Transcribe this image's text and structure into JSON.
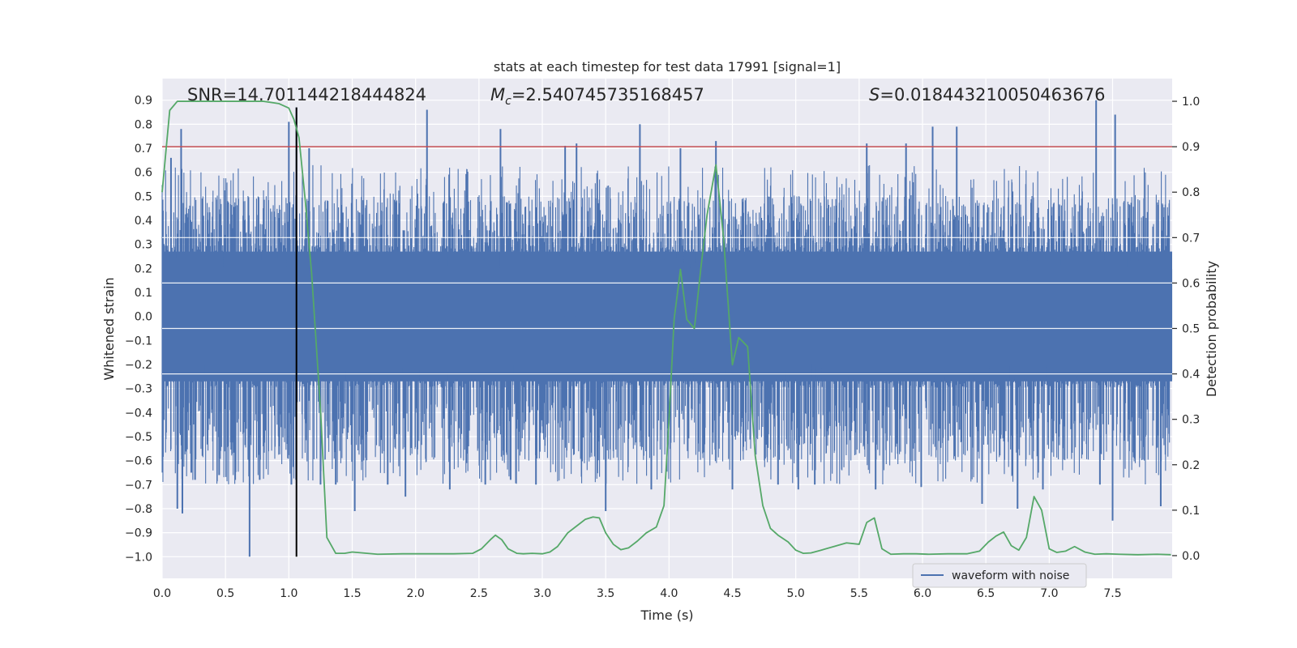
{
  "chart_data": {
    "type": "line",
    "title": "stats at each timestep for test data 17991 [signal=1]",
    "xlabel": "Time (s)",
    "ylabel_left": "Whitened strain",
    "ylabel_right": "Detection probability",
    "xlim": [
      0.0,
      7.97
    ],
    "ylim_left": [
      -1.09,
      0.99
    ],
    "ylim_right": [
      -0.05,
      1.05
    ],
    "xticks": [
      0.0,
      0.5,
      1.0,
      1.5,
      2.0,
      2.5,
      3.0,
      3.5,
      4.0,
      4.5,
      5.0,
      5.5,
      6.0,
      6.5,
      7.0,
      7.5
    ],
    "xtick_labels": [
      "0.0",
      "0.5",
      "1.0",
      "1.5",
      "2.0",
      "2.5",
      "3.0",
      "3.5",
      "4.0",
      "4.5",
      "5.0",
      "5.5",
      "6.0",
      "6.5",
      "7.0",
      "7.5"
    ],
    "yticks_left": [
      0.9,
      0.8,
      0.7,
      0.6,
      0.5,
      0.4,
      0.3,
      0.2,
      0.1,
      0.0,
      -0.1,
      -0.2,
      -0.3,
      -0.4,
      -0.5,
      -0.6,
      -0.7,
      -0.8,
      -0.9,
      -1.0
    ],
    "ytick_labels_left": [
      "0.9",
      "0.8",
      "0.7",
      "0.6",
      "0.5",
      "0.4",
      "0.3",
      "0.2",
      "0.1",
      "0.0",
      "−0.1",
      "−0.2",
      "−0.3",
      "−0.4",
      "−0.5",
      "−0.6",
      "−0.7",
      "−0.8",
      "−0.9",
      "−1.0"
    ],
    "yticks_right": [
      1.0,
      0.9,
      0.8,
      0.7,
      0.6,
      0.5,
      0.4,
      0.3,
      0.2,
      0.1,
      0.0
    ],
    "ytick_labels_right": [
      "1.0",
      "0.9",
      "0.8",
      "0.7",
      "0.6",
      "0.5",
      "0.4",
      "0.3",
      "0.2",
      "0.1",
      "0.0"
    ],
    "annotations": {
      "snr": "SNR=14.701144218444824",
      "mc_symbol": "M",
      "mc_sub": "c",
      "mc_value": "=2.540745735168457",
      "s_symbol": "S",
      "s_value": "=0.018443210050463676"
    },
    "threshold": {
      "axis": "right",
      "value": 0.9,
      "color": "#c44e52"
    },
    "marker_line": {
      "x": 1.06,
      "y_from": -1.0,
      "y_to": 0.87,
      "color": "#000000"
    },
    "waveform": {
      "name": "waveform with noise",
      "color": "#4c72b0",
      "duration": 7.97,
      "core_amplitude": 0.27,
      "max": 0.9,
      "min": -1.0,
      "spikes": [
        [
          0.07,
          0.66
        ],
        [
          0.12,
          -0.8
        ],
        [
          0.15,
          0.78
        ],
        [
          0.16,
          -0.82
        ],
        [
          0.23,
          -0.65
        ],
        [
          0.26,
          -0.68
        ],
        [
          0.45,
          -0.66
        ],
        [
          0.69,
          -1.0
        ],
        [
          0.77,
          -0.68
        ],
        [
          1.0,
          0.81
        ],
        [
          1.02,
          -0.7
        ],
        [
          1.06,
          0.87
        ],
        [
          1.16,
          0.7
        ],
        [
          1.25,
          -0.7
        ],
        [
          1.37,
          -0.7
        ],
        [
          1.52,
          -0.81
        ],
        [
          1.78,
          -0.7
        ],
        [
          1.92,
          -0.75
        ],
        [
          2.09,
          0.86
        ],
        [
          2.27,
          -0.72
        ],
        [
          2.55,
          -0.7
        ],
        [
          2.67,
          0.78
        ],
        [
          2.75,
          -0.68
        ],
        [
          2.95,
          -0.7
        ],
        [
          3.18,
          0.71
        ],
        [
          3.27,
          0.72
        ],
        [
          3.5,
          -0.81
        ],
        [
          3.77,
          0.8
        ],
        [
          3.86,
          -0.72
        ],
        [
          4.09,
          0.7
        ],
        [
          4.37,
          0.73
        ],
        [
          4.5,
          -0.72
        ],
        [
          4.86,
          -0.7
        ],
        [
          5.02,
          -0.72
        ],
        [
          5.15,
          -0.7
        ],
        [
          5.56,
          0.72
        ],
        [
          5.63,
          -0.72
        ],
        [
          5.87,
          0.72
        ],
        [
          5.99,
          -0.71
        ],
        [
          6.08,
          0.79
        ],
        [
          6.27,
          0.79
        ],
        [
          6.47,
          -0.78
        ],
        [
          6.75,
          -0.8
        ],
        [
          6.95,
          -0.72
        ],
        [
          7.37,
          0.9
        ],
        [
          7.4,
          -0.7
        ],
        [
          7.5,
          -0.85
        ],
        [
          7.52,
          0.84
        ],
        [
          7.88,
          -0.79
        ]
      ]
    },
    "detection_probability": {
      "name": "Detection probability",
      "color": "#55a868",
      "x": [
        0.0,
        0.06,
        0.12,
        0.2,
        0.4,
        0.6,
        0.8,
        0.92,
        1.0,
        1.04,
        1.08,
        1.13,
        1.18,
        1.25,
        1.3,
        1.37,
        1.44,
        1.5,
        1.7,
        1.9,
        2.1,
        2.3,
        2.45,
        2.52,
        2.59,
        2.63,
        2.68,
        2.73,
        2.8,
        2.85,
        2.92,
        3.0,
        3.06,
        3.12,
        3.2,
        3.27,
        3.34,
        3.4,
        3.45,
        3.5,
        3.56,
        3.62,
        3.68,
        3.75,
        3.82,
        3.9,
        3.96,
        4.0,
        4.04,
        4.09,
        4.14,
        4.2,
        4.25,
        4.3,
        4.37,
        4.43,
        4.5,
        4.55,
        4.62,
        4.68,
        4.74,
        4.8,
        4.86,
        4.94,
        5.0,
        5.06,
        5.12,
        5.2,
        5.3,
        5.4,
        5.5,
        5.56,
        5.62,
        5.68,
        5.75,
        5.85,
        5.95,
        6.05,
        6.2,
        6.35,
        6.45,
        6.52,
        6.58,
        6.64,
        6.7,
        6.76,
        6.82,
        6.88,
        6.94,
        7.0,
        7.06,
        7.13,
        7.2,
        7.28,
        7.36,
        7.45,
        7.55,
        7.7,
        7.85,
        7.96
      ],
      "y": [
        0.8,
        0.98,
        1.0,
        1.0,
        1.0,
        1.0,
        1.0,
        0.995,
        0.985,
        0.96,
        0.92,
        0.78,
        0.62,
        0.32,
        0.04,
        0.005,
        0.005,
        0.008,
        0.003,
        0.004,
        0.004,
        0.004,
        0.005,
        0.015,
        0.035,
        0.045,
        0.035,
        0.015,
        0.005,
        0.004,
        0.005,
        0.004,
        0.008,
        0.02,
        0.05,
        0.065,
        0.08,
        0.085,
        0.083,
        0.05,
        0.025,
        0.013,
        0.017,
        0.032,
        0.05,
        0.063,
        0.11,
        0.3,
        0.52,
        0.63,
        0.52,
        0.5,
        0.63,
        0.75,
        0.86,
        0.7,
        0.42,
        0.48,
        0.46,
        0.22,
        0.11,
        0.06,
        0.045,
        0.03,
        0.012,
        0.005,
        0.006,
        0.012,
        0.02,
        0.028,
        0.025,
        0.073,
        0.083,
        0.015,
        0.003,
        0.004,
        0.004,
        0.003,
        0.004,
        0.004,
        0.01,
        0.03,
        0.043,
        0.052,
        0.022,
        0.012,
        0.04,
        0.13,
        0.1,
        0.015,
        0.007,
        0.01,
        0.02,
        0.008,
        0.003,
        0.004,
        0.003,
        0.002,
        0.003,
        0.002
      ]
    }
  }
}
